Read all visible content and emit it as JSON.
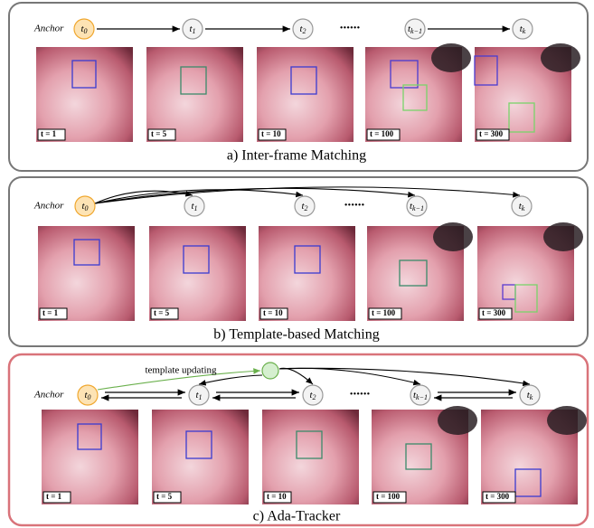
{
  "panels": [
    {
      "caption": "a) Inter-frame Matching",
      "anchor": "Anchor",
      "node_base": "t",
      "nodes": [
        "0",
        "1",
        "2",
        "k−1",
        "k"
      ],
      "ellipsis": "......",
      "frames": [
        "t = 1",
        "t = 5",
        "t = 10",
        "t = 100",
        "t = 300"
      ]
    },
    {
      "caption": "b) Template-based Matching",
      "anchor": "Anchor",
      "node_base": "t",
      "nodes": [
        "0",
        "1",
        "2",
        "k−1",
        "k"
      ],
      "ellipsis": "......",
      "frames": [
        "t = 1",
        "t = 5",
        "t = 10",
        "t = 100",
        "t = 300"
      ]
    },
    {
      "caption": "c) Ada-Tracker",
      "anchor": "Anchor",
      "node_base": "t",
      "nodes": [
        "0",
        "1",
        "2",
        "k−1",
        "k"
      ],
      "ellipsis": "......",
      "frames": [
        "t = 1",
        "t = 5",
        "t = 10",
        "t = 100",
        "t = 300"
      ]
    }
  ],
  "template_label": "template updating"
}
